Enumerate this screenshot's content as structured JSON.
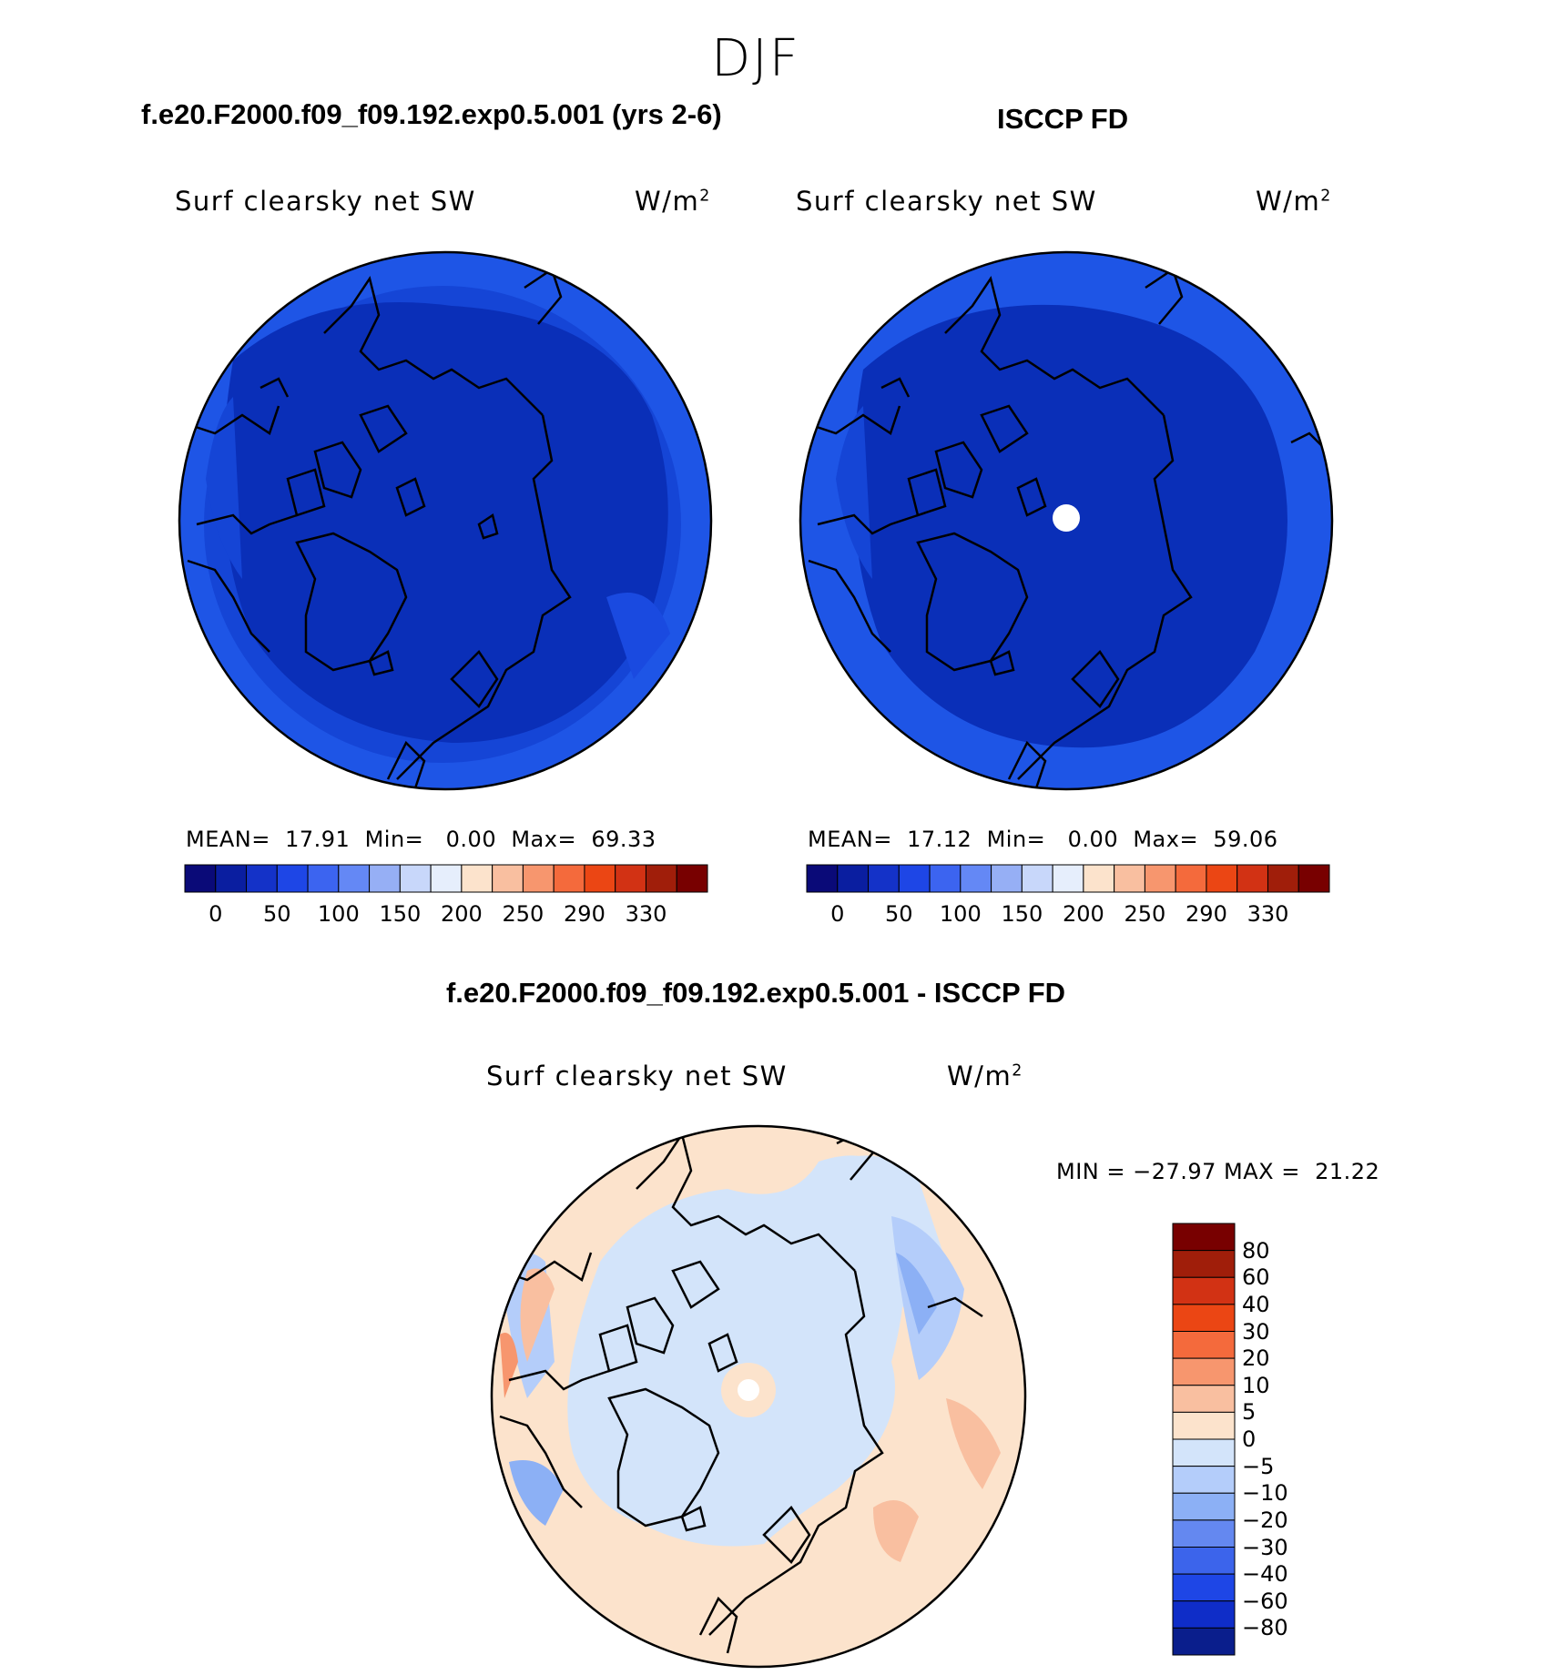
{
  "season": "DJF",
  "top_left": {
    "case_title": "f.e20.F2000.f09_f09.192.exp0.5.001 (yrs 2-6)",
    "variable": "Surf clearsky net SW",
    "units_base": "W/m",
    "units_exp": "2",
    "stats": "MEAN=  17.91  Min=   0.00  Max=  69.33"
  },
  "top_right": {
    "case_title": "ISCCP FD",
    "variable": "Surf clearsky net SW",
    "units_base": "W/m",
    "units_exp": "2",
    "stats": "MEAN=  17.12  Min=   0.00  Max=  59.06"
  },
  "bottom": {
    "case_title": "f.e20.F2000.f09_f09.192.exp0.5.001 - ISCCP FD",
    "variable": "Surf clearsky net SW",
    "units_base": "W/m",
    "units_exp": "2",
    "stats": "MIN = −27.97 MAX =  21.22"
  },
  "colors": {
    "abs_scale": [
      "#0a0a78",
      "#0a1ea0",
      "#1432c8",
      "#1e46e6",
      "#3c64f0",
      "#6488f5",
      "#96aff5",
      "#c8d7fa",
      "#e6eefc",
      "#fce3cc",
      "#f9bfa0",
      "#f7966e",
      "#f46a3c",
      "#eb4614",
      "#d23214",
      "#a01e0a",
      "#780000"
    ],
    "diff_scale": [
      "#780000",
      "#a01e0a",
      "#d23214",
      "#eb4614",
      "#f46a3c",
      "#f7966e",
      "#f9bfa0",
      "#fce3cc",
      "#d3e4fa",
      "#b4cdfa",
      "#8cb0f5",
      "#6488f0",
      "#3c64eb",
      "#1e46e6",
      "#0f2dc8",
      "#0a1e8c"
    ],
    "land_ocean_dark": "#0a2fb8",
    "ocean_mid": "#1545d6",
    "outer_band": "#1e55e6"
  },
  "abs_ticks": [
    "0",
    "50",
    "100",
    "150",
    "200",
    "250",
    "290",
    "330"
  ],
  "diff_ticks": [
    "80",
    "60",
    "40",
    "30",
    "20",
    "10",
    "5",
    "0",
    "−5",
    "−10",
    "−20",
    "−30",
    "−40",
    "−60",
    "−80"
  ]
}
